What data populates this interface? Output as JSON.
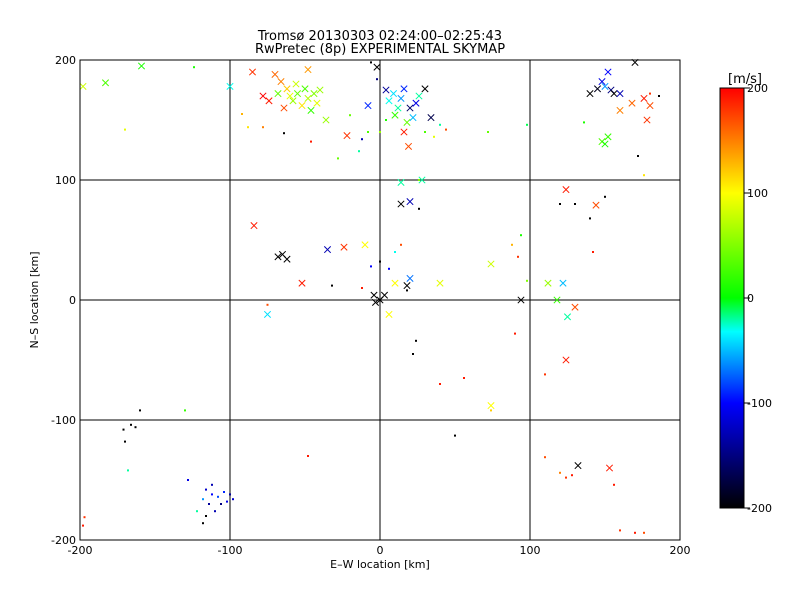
{
  "chart_data": {
    "type": "scatter",
    "title": "Tromsø 20130303 02:24:00–02:25:43",
    "subtitle": "RwPretec (8p) EXPERIMENTAL SKYMAP",
    "xlabel": "E–W location [km]",
    "ylabel": "N–S location [km]",
    "xlim": [
      -200,
      200
    ],
    "ylim": [
      -200,
      200
    ],
    "xticks": [
      -200,
      -100,
      0,
      100,
      200
    ],
    "yticks": [
      -200,
      -100,
      0,
      100,
      200
    ],
    "grid": true,
    "colorbar": {
      "label": "[m/s]",
      "min": -200,
      "max": 200,
      "ticks": [
        -200,
        -100,
        0,
        100,
        200
      ],
      "colormap": [
        "#000000",
        "#0000ff",
        "#00ffff",
        "#00ff00",
        "#ffff00",
        "#ff0000"
      ]
    },
    "series": [
      {
        "marker": "x",
        "points": [
          [
            -198,
            178,
            80
          ],
          [
            -183,
            181,
            30
          ],
          [
            -159,
            195,
            10
          ],
          [
            -100,
            178,
            -30
          ],
          [
            -85,
            190,
            180
          ],
          [
            -70,
            188,
            160
          ],
          [
            -66,
            182,
            150
          ],
          [
            -62,
            176,
            120
          ],
          [
            -60,
            170,
            90
          ],
          [
            -58,
            166,
            60
          ],
          [
            -55,
            172,
            40
          ],
          [
            -52,
            162,
            110
          ],
          [
            -50,
            176,
            30
          ],
          [
            -48,
            168,
            70
          ],
          [
            -46,
            158,
            20
          ],
          [
            -44,
            172,
            50
          ],
          [
            -42,
            164,
            90
          ],
          [
            -40,
            175,
            60
          ],
          [
            -64,
            160,
            170
          ],
          [
            -74,
            166,
            190
          ],
          [
            -78,
            170,
            200
          ],
          [
            -68,
            172,
            40
          ],
          [
            -56,
            180,
            80
          ],
          [
            -48,
            192,
            140
          ],
          [
            -36,
            150,
            60
          ],
          [
            -22,
            137,
            180
          ],
          [
            -8,
            162,
            -90
          ],
          [
            -2,
            194,
            -200
          ],
          [
            4,
            175,
            -140
          ],
          [
            6,
            166,
            -30
          ],
          [
            9,
            172,
            -40
          ],
          [
            12,
            160,
            -20
          ],
          [
            14,
            168,
            -60
          ],
          [
            16,
            176,
            -90
          ],
          [
            10,
            154,
            20
          ],
          [
            18,
            148,
            40
          ],
          [
            20,
            160,
            -160
          ],
          [
            24,
            164,
            -110
          ],
          [
            26,
            170,
            -20
          ],
          [
            30,
            176,
            -200
          ],
          [
            16,
            140,
            190
          ],
          [
            19,
            128,
            170
          ],
          [
            22,
            152,
            -50
          ],
          [
            34,
            152,
            -170
          ],
          [
            28,
            100,
            -20
          ],
          [
            14,
            98,
            -20
          ],
          [
            14,
            80,
            -200
          ],
          [
            20,
            82,
            -130
          ],
          [
            -84,
            62,
            190
          ],
          [
            -68,
            36,
            -200
          ],
          [
            -65,
            38,
            -200
          ],
          [
            -62,
            34,
            -200
          ],
          [
            -35,
            42,
            -130
          ],
          [
            -24,
            44,
            180
          ],
          [
            -52,
            14,
            190
          ],
          [
            -10,
            46,
            100
          ],
          [
            0,
            0,
            -200
          ],
          [
            3,
            4,
            -200
          ],
          [
            -3,
            -2,
            -200
          ],
          [
            -4,
            4,
            -200
          ],
          [
            6,
            -12,
            100
          ],
          [
            10,
            14,
            100
          ],
          [
            18,
            12,
            -200
          ],
          [
            20,
            18,
            -70
          ],
          [
            40,
            14,
            90
          ],
          [
            74,
            30,
            80
          ],
          [
            94,
            0,
            -200
          ],
          [
            112,
            14,
            60
          ],
          [
            118,
            0,
            20
          ],
          [
            122,
            14,
            -50
          ],
          [
            125,
            -14,
            -20
          ],
          [
            130,
            -6,
            170
          ],
          [
            124,
            -50,
            190
          ],
          [
            124,
            92,
            190
          ],
          [
            144,
            79,
            170
          ],
          [
            140,
            172,
            -200
          ],
          [
            145,
            176,
            -190
          ],
          [
            148,
            182,
            -110
          ],
          [
            150,
            178,
            -60
          ],
          [
            152,
            190,
            -100
          ],
          [
            154,
            175,
            -150
          ],
          [
            156,
            172,
            -200
          ],
          [
            160,
            172,
            -130
          ],
          [
            148,
            132,
            30
          ],
          [
            150,
            130,
            10
          ],
          [
            152,
            136,
            20
          ],
          [
            160,
            158,
            150
          ],
          [
            168,
            164,
            160
          ],
          [
            176,
            168,
            190
          ],
          [
            178,
            150,
            180
          ],
          [
            180,
            162,
            170
          ],
          [
            170,
            198,
            -200
          ],
          [
            -75,
            -12,
            -40
          ],
          [
            74,
            -88,
            100
          ],
          [
            132,
            -138,
            -200
          ],
          [
            153,
            -140,
            190
          ]
        ]
      },
      {
        "marker": "dot",
        "points": [
          [
            -198,
            -188,
            190
          ],
          [
            -197,
            -181,
            180
          ],
          [
            -171,
            -108,
            -200
          ],
          [
            -170,
            -118,
            -200
          ],
          [
            -166,
            -104,
            -200
          ],
          [
            -163,
            -106,
            -200
          ],
          [
            -160,
            -92,
            -200
          ],
          [
            -168,
            -142,
            -20
          ],
          [
            -130,
            -92,
            20
          ],
          [
            -128,
            -150,
            -110
          ],
          [
            -118,
            -166,
            -60
          ],
          [
            -116,
            -158,
            -120
          ],
          [
            -114,
            -170,
            -140
          ],
          [
            -112,
            -162,
            -100
          ],
          [
            -110,
            -176,
            -130
          ],
          [
            -108,
            -164,
            -80
          ],
          [
            -106,
            -170,
            -150
          ],
          [
            -104,
            -160,
            -90
          ],
          [
            -102,
            -168,
            -110
          ],
          [
            -118,
            -186,
            -200
          ],
          [
            -116,
            -180,
            -200
          ],
          [
            -100,
            -162,
            -140
          ],
          [
            -98,
            -166,
            -120
          ],
          [
            -122,
            -176,
            -20
          ],
          [
            -112,
            -154,
            -130
          ],
          [
            -48,
            -130,
            190
          ],
          [
            -75,
            -4,
            170
          ],
          [
            -32,
            12,
            -200
          ],
          [
            -12,
            10,
            190
          ],
          [
            -6,
            28,
            -100
          ],
          [
            0,
            32,
            -200
          ],
          [
            6,
            26,
            -100
          ],
          [
            10,
            40,
            -30
          ],
          [
            14,
            46,
            170
          ],
          [
            18,
            8,
            -200
          ],
          [
            22,
            -45,
            -200
          ],
          [
            24,
            -34,
            -200
          ],
          [
            40,
            -70,
            190
          ],
          [
            56,
            -65,
            190
          ],
          [
            50,
            -113,
            -200
          ],
          [
            74,
            -92,
            120
          ],
          [
            90,
            -28,
            190
          ],
          [
            92,
            36,
            180
          ],
          [
            94,
            54,
            10
          ],
          [
            88,
            46,
            130
          ],
          [
            98,
            16,
            50
          ],
          [
            110,
            -62,
            180
          ],
          [
            110,
            -131,
            170
          ],
          [
            120,
            -144,
            150
          ],
          [
            124,
            -148,
            180
          ],
          [
            128,
            -146,
            190
          ],
          [
            140,
            68,
            -200
          ],
          [
            130,
            80,
            -200
          ],
          [
            142,
            40,
            190
          ],
          [
            150,
            86,
            -200
          ],
          [
            156,
            -154,
            190
          ],
          [
            160,
            -192,
            180
          ],
          [
            170,
            -194,
            190
          ],
          [
            176,
            -194,
            170
          ],
          [
            -170,
            142,
            90
          ],
          [
            -124,
            194,
            10
          ],
          [
            -92,
            155,
            130
          ],
          [
            -88,
            144,
            110
          ],
          [
            -78,
            144,
            150
          ],
          [
            -64,
            139,
            -200
          ],
          [
            -46,
            132,
            190
          ],
          [
            -28,
            118,
            40
          ],
          [
            -14,
            124,
            -20
          ],
          [
            -8,
            140,
            30
          ],
          [
            -2,
            184,
            -150
          ],
          [
            -6,
            198,
            -200
          ],
          [
            26,
            100,
            50
          ],
          [
            26,
            76,
            -200
          ],
          [
            36,
            136,
            90
          ],
          [
            40,
            146,
            -20
          ],
          [
            72,
            140,
            40
          ],
          [
            98,
            146,
            -10
          ],
          [
            120,
            80,
            -200
          ],
          [
            136,
            148,
            10
          ],
          [
            172,
            120,
            -200
          ],
          [
            176,
            104,
            110
          ],
          [
            180,
            172,
            180
          ],
          [
            186,
            170,
            -200
          ],
          [
            -20,
            154,
            40
          ],
          [
            -12,
            134,
            -130
          ],
          [
            0,
            140,
            60
          ],
          [
            4,
            150,
            10
          ],
          [
            30,
            140,
            30
          ],
          [
            44,
            142,
            170
          ]
        ]
      }
    ]
  }
}
